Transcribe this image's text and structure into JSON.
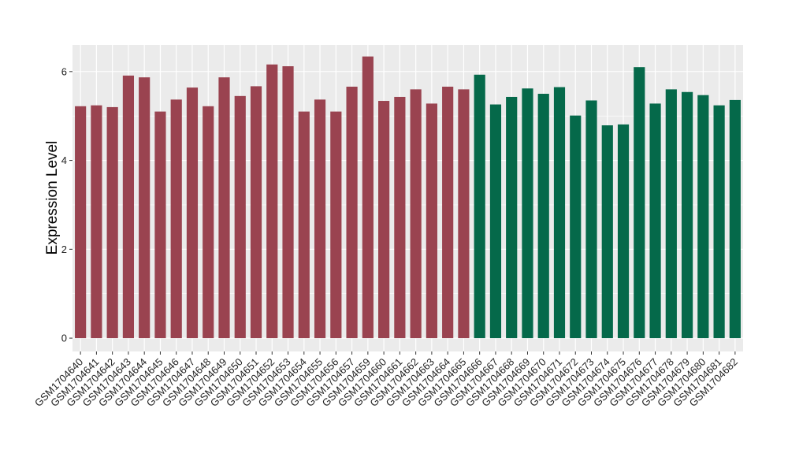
{
  "chart_data": {
    "type": "bar",
    "ylabel": "Expression Level",
    "ylim": [
      -0.3,
      6.6
    ],
    "yticks": [
      0,
      2,
      4,
      6
    ],
    "ytick_labels": [
      "0",
      "2",
      "4",
      "6"
    ],
    "grid": true,
    "colors": {
      "group1": "#9a4350",
      "group2": "#05694a",
      "panel": "#ebebeb",
      "grid": "#ffffff"
    },
    "categories": [
      "GSM1704640",
      "GSM1704641",
      "GSM1704642",
      "GSM1704643",
      "GSM1704644",
      "GSM1704645",
      "GSM1704646",
      "GSM1704647",
      "GSM1704648",
      "GSM1704649",
      "GSM1704650",
      "GSM1704651",
      "GSM1704652",
      "GSM1704653",
      "GSM1704654",
      "GSM1704655",
      "GSM1704656",
      "GSM1704657",
      "GSM1704659",
      "GSM1704660",
      "GSM1704661",
      "GSM1704662",
      "GSM1704663",
      "GSM1704664",
      "GSM1704665",
      "GSM1704666",
      "GSM1704667",
      "GSM1704668",
      "GSM1704669",
      "GSM1704670",
      "GSM1704671",
      "GSM1704672",
      "GSM1704673",
      "GSM1704674",
      "GSM1704675",
      "GSM1704676",
      "GSM1704677",
      "GSM1704678",
      "GSM1704679",
      "GSM1704680",
      "GSM1704681",
      "GSM1704682"
    ],
    "values": [
      5.22,
      5.24,
      5.2,
      5.91,
      5.87,
      5.1,
      5.37,
      5.64,
      5.22,
      5.87,
      5.45,
      5.67,
      6.16,
      6.12,
      5.1,
      5.37,
      5.1,
      5.66,
      6.34,
      5.34,
      5.43,
      5.6,
      5.28,
      5.66,
      5.6,
      5.93,
      5.26,
      5.43,
      5.62,
      5.5,
      5.65,
      5.01,
      5.35,
      4.79,
      4.81,
      6.1,
      5.28,
      5.6,
      5.54,
      5.47,
      5.24,
      5.36
    ],
    "groups": [
      1,
      1,
      1,
      1,
      1,
      1,
      1,
      1,
      1,
      1,
      1,
      1,
      1,
      1,
      1,
      1,
      1,
      1,
      1,
      1,
      1,
      1,
      1,
      1,
      1,
      2,
      2,
      2,
      2,
      2,
      2,
      2,
      2,
      2,
      2,
      2,
      2,
      2,
      2,
      2,
      2,
      2
    ]
  }
}
